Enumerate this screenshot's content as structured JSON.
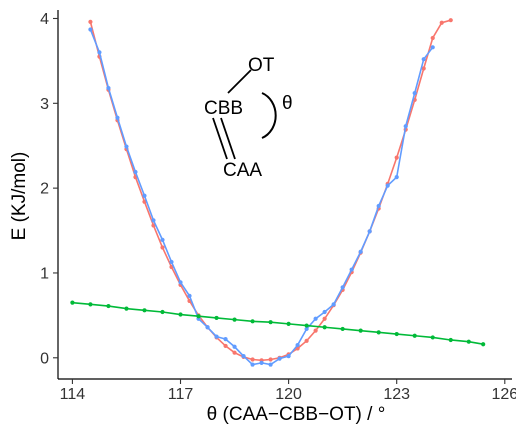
{
  "chart_data": {
    "type": "line",
    "title": "",
    "xlabel": "θ (CAA−CBB−OT) / °",
    "ylabel": "E (KJ/mol)",
    "xlim": [
      113.6,
      126.2
    ],
    "ylim": [
      -0.25,
      4.1
    ],
    "x_ticks": [
      114,
      117,
      120,
      123,
      126
    ],
    "y_ticks": [
      0,
      1,
      2,
      3,
      4
    ],
    "grid": false,
    "legend": "none",
    "series": [
      {
        "color": "#F8766D",
        "style": "line+points",
        "x": [
          114.5,
          114.75,
          115.0,
          115.25,
          115.5,
          115.75,
          116.0,
          116.25,
          116.5,
          116.75,
          117.0,
          117.25,
          117.5,
          117.75,
          118.0,
          118.25,
          118.5,
          118.75,
          119.0,
          119.25,
          119.5,
          119.75,
          120.0,
          120.25,
          120.5,
          120.75,
          121.0,
          121.25,
          121.5,
          121.75,
          122.0,
          122.25,
          122.5,
          122.75,
          123.0,
          123.25,
          123.5,
          123.75,
          124.0,
          124.25,
          124.5
        ],
        "y": [
          3.96,
          3.55,
          3.16,
          2.8,
          2.46,
          2.13,
          1.84,
          1.56,
          1.3,
          1.07,
          0.86,
          0.67,
          0.5,
          0.36,
          0.24,
          0.14,
          0.06,
          0.01,
          -0.02,
          -0.03,
          -0.02,
          0.0,
          0.04,
          0.11,
          0.2,
          0.32,
          0.46,
          0.62,
          0.8,
          1.01,
          1.24,
          1.49,
          1.76,
          2.05,
          2.36,
          2.69,
          3.04,
          3.41,
          3.77,
          3.95,
          3.98
        ]
      },
      {
        "color": "#619CFF",
        "style": "line+points",
        "x": [
          114.5,
          114.75,
          115.0,
          115.25,
          115.5,
          115.75,
          116.0,
          116.25,
          116.5,
          116.75,
          117.0,
          117.25,
          117.5,
          117.75,
          118.0,
          118.25,
          118.5,
          118.75,
          119.0,
          119.25,
          119.5,
          119.75,
          120.0,
          120.25,
          120.5,
          120.75,
          121.0,
          121.25,
          121.5,
          121.75,
          122.0,
          122.25,
          122.5,
          122.75,
          123.0,
          123.25,
          123.5,
          123.75,
          124.0
        ],
        "y": [
          3.87,
          3.6,
          3.18,
          2.83,
          2.49,
          2.19,
          1.91,
          1.62,
          1.39,
          1.13,
          0.89,
          0.73,
          0.46,
          0.36,
          0.25,
          0.22,
          0.13,
          0.02,
          -0.08,
          -0.06,
          -0.08,
          -0.01,
          0.02,
          0.15,
          0.34,
          0.46,
          0.54,
          0.63,
          0.83,
          1.04,
          1.25,
          1.49,
          1.79,
          2.03,
          2.13,
          2.73,
          3.12,
          3.52,
          3.66
        ]
      },
      {
        "color": "#00BA38",
        "style": "line+points",
        "x": [
          114.0,
          114.5,
          115.0,
          115.5,
          116.0,
          116.5,
          117.0,
          117.5,
          118.0,
          118.5,
          119.0,
          119.5,
          120.0,
          120.5,
          121.0,
          121.5,
          122.0,
          122.5,
          123.0,
          123.5,
          124.0,
          124.5,
          125.0,
          125.4
        ],
        "y": [
          0.65,
          0.63,
          0.61,
          0.58,
          0.56,
          0.54,
          0.51,
          0.49,
          0.47,
          0.45,
          0.43,
          0.42,
          0.4,
          0.38,
          0.36,
          0.34,
          0.32,
          0.3,
          0.28,
          0.26,
          0.24,
          0.21,
          0.19,
          0.16
        ]
      }
    ],
    "annotations": {
      "top": "OT",
      "middle": "CBB",
      "bottom": "CAA",
      "angle": "θ"
    }
  }
}
